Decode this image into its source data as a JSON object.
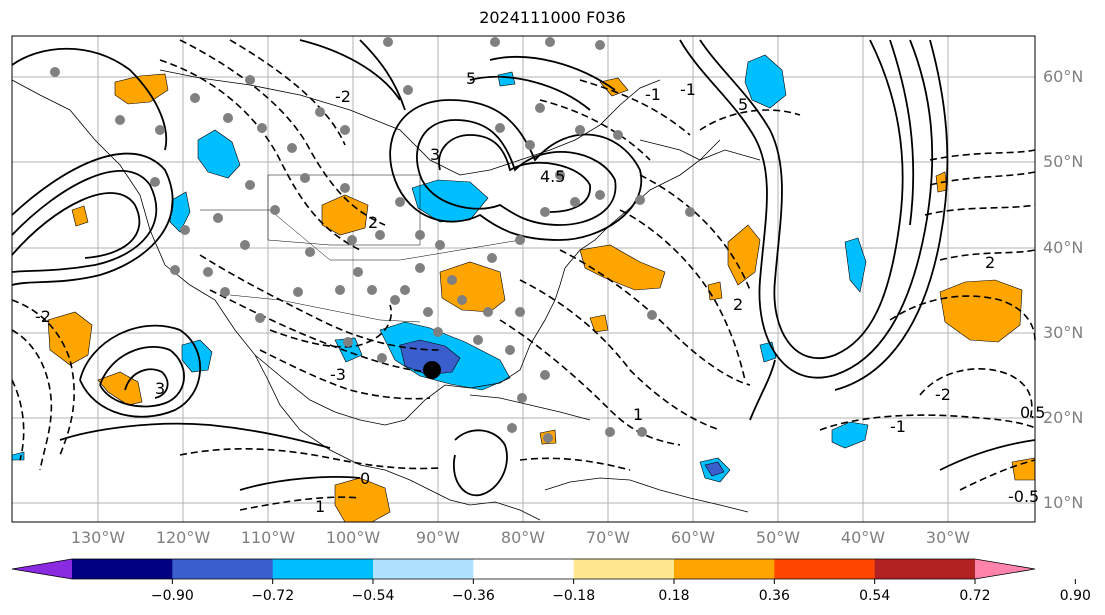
{
  "title": "2024111000 F036",
  "lat_labels": [
    "60°N",
    "50°N",
    "40°N",
    "30°N",
    "20°N",
    "10°N"
  ],
  "lon_labels": [
    "130°W",
    "120°W",
    "110°W",
    "100°W",
    "90°W",
    "80°W",
    "70°W",
    "60°W",
    "50°W",
    "40°W",
    "30°W"
  ],
  "colorbar": {
    "ticks": [
      "−0.90",
      "−0.72",
      "−0.54",
      "−0.36",
      "−0.18",
      "0.18",
      "0.36",
      "0.54",
      "0.72",
      "0.90"
    ],
    "colors": [
      "#8a2be2",
      "#000080",
      "#3a5fcd",
      "#00bfff",
      "#b0e2ff",
      "#ffffff",
      "#ffe890",
      "#ffa500",
      "#ff4500",
      "#b22222",
      "#ff83aa"
    ]
  },
  "contour_labels": [
    "5",
    "5",
    "4.5",
    "3",
    "3",
    "2",
    "2",
    "2",
    "1",
    "1",
    "0",
    "-1",
    "-2",
    "-2",
    "-3",
    "-1",
    "-1",
    "-2",
    "0.5",
    "-0.5"
  ],
  "colors": {
    "positive_fill": "#ffa500",
    "negative_fill": "#00bfff",
    "strong_negative_fill": "#3a5fcd",
    "station": "#808080",
    "grid": "#b3b3b3"
  }
}
